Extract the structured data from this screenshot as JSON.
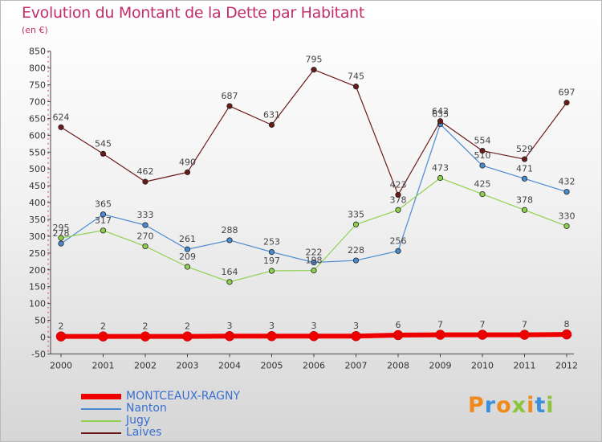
{
  "chart_data": {
    "type": "line",
    "title": "Evolution du Montant de la Dette par Habitant",
    "unit_label": "(en €)",
    "categories": [
      "2000",
      "2001",
      "2002",
      "2003",
      "2004",
      "2005",
      "2006",
      "2007",
      "2008",
      "2009",
      "2010",
      "2011",
      "2012"
    ],
    "ylim": [
      -50,
      850
    ],
    "yticks": [
      -50,
      0,
      50,
      100,
      150,
      200,
      250,
      300,
      350,
      400,
      450,
      500,
      550,
      600,
      650,
      700,
      750,
      800,
      850
    ],
    "grid": false,
    "legend_position": "bottom-left",
    "series": [
      {
        "name": "MONTCEAUX-RAGNY",
        "color": "#ee0000",
        "values": [
          2,
          2,
          2,
          2,
          3,
          3,
          3,
          3,
          6,
          7,
          7,
          7,
          8
        ]
      },
      {
        "name": "Nanton",
        "color": "#4a8ad0",
        "values": [
          278,
          365,
          333,
          261,
          288,
          253,
          222,
          228,
          256,
          633,
          510,
          471,
          432
        ]
      },
      {
        "name": "Jugy",
        "color": "#8fd14f",
        "values": [
          295,
          317,
          270,
          209,
          164,
          197,
          198,
          335,
          378,
          473,
          425,
          378,
          330
        ]
      },
      {
        "name": "Laives",
        "color": "#6b1a1a",
        "values": [
          624,
          545,
          462,
          490,
          687,
          631,
          795,
          745,
          423,
          642,
          554,
          529,
          697
        ]
      }
    ]
  },
  "logo": {
    "text": "Proxiti",
    "colors": [
      "#f08a1c",
      "#3a8fd8",
      "#f08a1c",
      "#8cc43c",
      "#f08a1c",
      "#3a8fd8",
      "#8cc43c"
    ]
  }
}
